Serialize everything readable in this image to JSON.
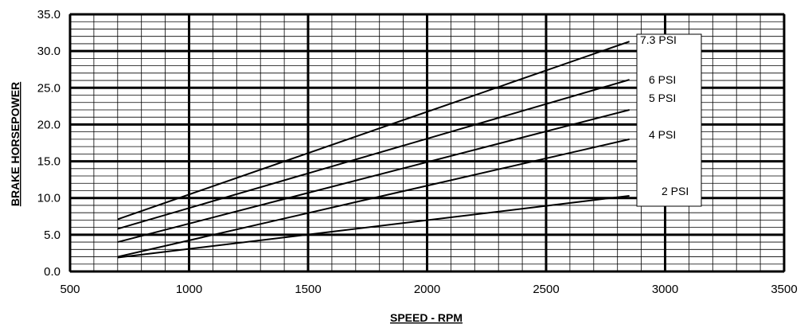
{
  "chart_data": {
    "type": "line",
    "title": "",
    "xlabel": "SPEED - RPM",
    "ylabel": "BRAKE HORSEPOWER",
    "xlim": [
      500,
      3500
    ],
    "ylim": [
      0,
      35
    ],
    "x_ticks": [
      "500",
      "1000",
      "1500",
      "2000",
      "2500",
      "3000",
      "3500"
    ],
    "y_ticks": [
      "0.0",
      "5.0",
      "10.0",
      "15.0",
      "20.0",
      "25.0",
      "30.0",
      "35.0"
    ],
    "grid": true,
    "legend": "right",
    "series": [
      {
        "name": "7.3 PSI",
        "x": [
          700,
          2850
        ],
        "y": [
          7.1,
          31.3
        ]
      },
      {
        "name": "6 PSI",
        "x": [
          700,
          2850
        ],
        "y": [
          5.8,
          26.1
        ]
      },
      {
        "name": "5 PSI",
        "x": [
          700,
          2850
        ],
        "y": [
          4.0,
          22.0
        ]
      },
      {
        "name": "4 PSI",
        "x": [
          700,
          2850
        ],
        "y": [
          2.0,
          18.0
        ]
      },
      {
        "name": "2 PSI",
        "x": [
          700,
          2850
        ],
        "y": [
          1.9,
          10.3
        ]
      }
    ]
  }
}
